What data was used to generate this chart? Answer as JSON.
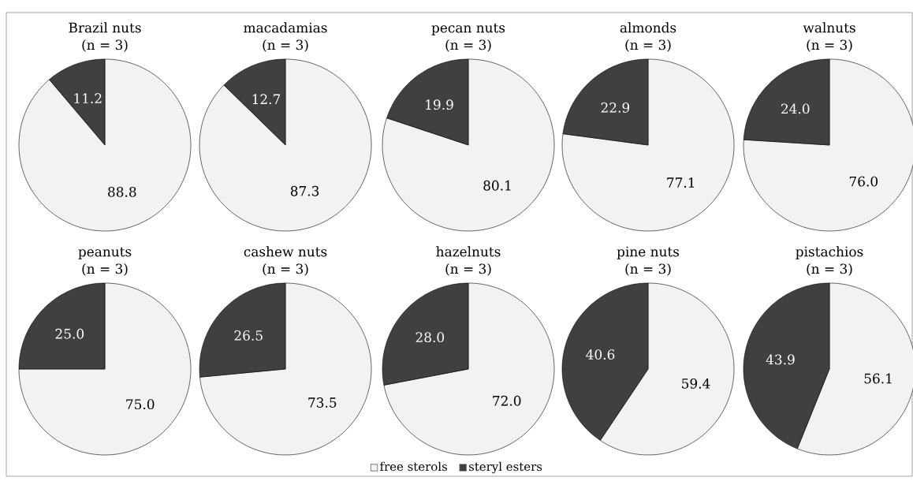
{
  "chart_data": [
    {
      "type": "pie",
      "title": "Brazil nuts",
      "subtitle": "(n = 3)",
      "values": [
        88.8,
        11.2
      ],
      "colors": [
        "#f2f2f2",
        "#404040"
      ],
      "value_labels": [
        "88.8",
        "11.2"
      ]
    },
    {
      "type": "pie",
      "title": "macadamias",
      "subtitle": "(n = 3)",
      "values": [
        87.3,
        12.7
      ],
      "colors": [
        "#f2f2f2",
        "#404040"
      ],
      "value_labels": [
        "87.3",
        "12.7"
      ]
    },
    {
      "type": "pie",
      "title": "pecan nuts",
      "subtitle": "(n = 3)",
      "values": [
        80.1,
        19.9
      ],
      "colors": [
        "#f2f2f2",
        "#404040"
      ],
      "value_labels": [
        "80.1",
        "19.9"
      ]
    },
    {
      "type": "pie",
      "title": "almonds",
      "subtitle": "(n = 3)",
      "values": [
        77.1,
        22.9
      ],
      "colors": [
        "#f2f2f2",
        "#404040"
      ],
      "value_labels": [
        "77.1",
        "22.9"
      ]
    },
    {
      "type": "pie",
      "title": "walnuts",
      "subtitle": "(n = 3)",
      "values": [
        76.0,
        24.0
      ],
      "colors": [
        "#f2f2f2",
        "#404040"
      ],
      "value_labels": [
        "76.0",
        "24.0"
      ]
    },
    {
      "type": "pie",
      "title": "peanuts",
      "subtitle": "(n = 3)",
      "values": [
        75.0,
        25.0
      ],
      "colors": [
        "#f2f2f2",
        "#404040"
      ],
      "value_labels": [
        "75.0",
        "25.0"
      ]
    },
    {
      "type": "pie",
      "title": "cashew nuts",
      "subtitle": "(n = 3)",
      "values": [
        73.5,
        26.5
      ],
      "colors": [
        "#f2f2f2",
        "#404040"
      ],
      "value_labels": [
        "73.5",
        "26.5"
      ]
    },
    {
      "type": "pie",
      "title": "hazelnuts",
      "subtitle": "(n = 3)",
      "values": [
        72.0,
        28.0
      ],
      "colors": [
        "#f2f2f2",
        "#404040"
      ],
      "value_labels": [
        "72.0",
        "28.0"
      ]
    },
    {
      "type": "pie",
      "title": "pine nuts",
      "subtitle": "(n = 3)",
      "values": [
        59.4,
        40.6
      ],
      "colors": [
        "#f2f2f2",
        "#404040"
      ],
      "value_labels": [
        "59.4",
        "40.6"
      ]
    },
    {
      "type": "pie",
      "title": "pistachios",
      "subtitle": "(n = 3)",
      "categories": [
        "free sterols",
        "steryl esters"
      ],
      "values": [
        56.1,
        43.9
      ],
      "colors": [
        "#f2f2f2",
        "#404040"
      ],
      "value_labels": [
        "56.1",
        "43.9"
      ],
      "legend": "bottom"
    }
  ]
}
